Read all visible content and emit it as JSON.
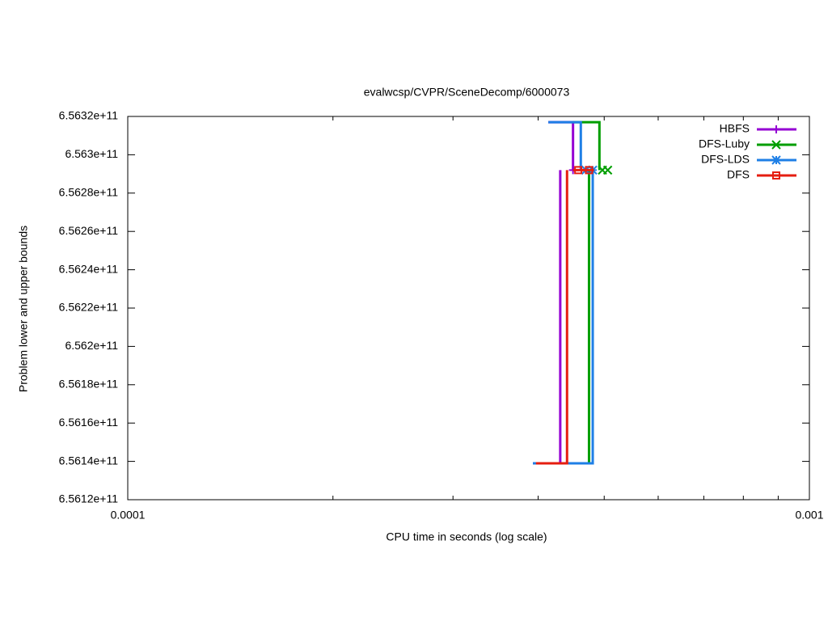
{
  "chart_data": {
    "type": "line",
    "title": "evalwcsp/CVPR/SceneDecomp/6000073",
    "x_label": "CPU time in seconds (log scale)",
    "y_label": "Problem lower and upper bounds",
    "x_log": true,
    "xlim": [
      0.0001,
      0.001
    ],
    "xticks": [
      0.0001,
      0.001
    ],
    "xminorticks": [
      0.0002,
      0.0003,
      0.0004,
      0.0005,
      0.0006,
      0.0007,
      0.0008,
      0.0009
    ],
    "ylim": [
      656120000000,
      656320000000
    ],
    "yticks": [
      {
        "value": 656120000000,
        "label": "6.5612e+11"
      },
      {
        "value": 656140000000,
        "label": "6.5614e+11"
      },
      {
        "value": 656160000000,
        "label": "6.5616e+11"
      },
      {
        "value": 656180000000,
        "label": "6.5618e+11"
      },
      {
        "value": 656200000000,
        "label": "6.562e+11"
      },
      {
        "value": 656220000000,
        "label": "6.5622e+11"
      },
      {
        "value": 656240000000,
        "label": "6.5624e+11"
      },
      {
        "value": 656260000000,
        "label": "6.5626e+11"
      },
      {
        "value": 656280000000,
        "label": "6.5628e+11"
      },
      {
        "value": 656300000000,
        "label": "6.563e+11"
      },
      {
        "value": 656320000000,
        "label": "6.5632e+11"
      }
    ],
    "legend": "top-right",
    "series": [
      {
        "name": "HBFS",
        "color": "#9400d3",
        "marker": "plus",
        "x": [
          0.000393,
          0.000431,
          0.000431,
          null,
          0.000414,
          0.00045,
          0.00045
        ],
        "values": [
          656139000000,
          656139000000,
          656292000000,
          null,
          656317000000,
          656317000000,
          656292000000
        ],
        "points": {
          "x": [
            0.00045
          ],
          "values": [
            656292000000
          ]
        }
      },
      {
        "name": "DFS-Luby",
        "color": "#009e00",
        "marker": "cross",
        "x": [
          0.00044,
          0.000475,
          0.000475,
          null,
          0.00045,
          0.000492,
          0.000492
        ],
        "values": [
          656139000000,
          656139000000,
          656292000000,
          null,
          656317000000,
          656317000000,
          656292000000
        ],
        "points": {
          "x": [
            0.000497,
            0.000506
          ],
          "values": [
            656292000000,
            656292000000
          ]
        }
      },
      {
        "name": "DFS-LDS",
        "color": "#1e7fe6",
        "marker": "star",
        "x": [
          0.000393,
          0.000481,
          0.000481,
          null,
          0.000414,
          0.000462,
          0.000462
        ],
        "values": [
          656139000000,
          656139000000,
          656292000000,
          null,
          656317000000,
          656317000000,
          656292000000
        ],
        "points": {
          "x": [
            0.00047,
            0.000481
          ],
          "values": [
            656292000000,
            656292000000
          ]
        }
      },
      {
        "name": "DFS",
        "color": "#e51e10",
        "marker": "square",
        "x": [
          0.000397,
          0.000441,
          0.000441,
          null,
          0.00045,
          0.000483
        ],
        "values": [
          656139000000,
          656139000000,
          656292000000,
          null,
          656292000000,
          656292000000
        ],
        "points": {
          "x": [
            0.000458,
            0.000475
          ],
          "values": [
            656292000000,
            656292000000
          ]
        }
      }
    ]
  }
}
